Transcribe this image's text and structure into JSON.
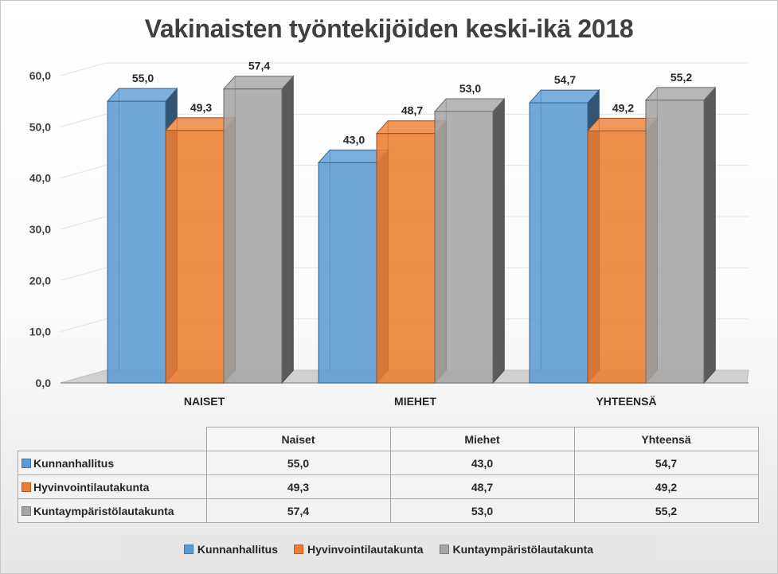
{
  "chart_data": {
    "type": "bar",
    "title": "Vakinaisten työntekijöiden keski-ikä 2018",
    "categories": [
      "NAISET",
      "MIEHET",
      "YHTEENSÄ"
    ],
    "ylim": [
      0,
      60
    ],
    "yticks": [
      "0,0",
      "10,0",
      "20,0",
      "30,0",
      "40,0",
      "50,0",
      "60,0"
    ],
    "grid": true,
    "legend_position": "bottom",
    "series": [
      {
        "name": "Kunnanhallitus",
        "color": "#5b9bd5",
        "values": [
          55.0,
          43.0,
          54.7
        ],
        "labels": [
          "55,0",
          "43,0",
          "54,7"
        ]
      },
      {
        "name": "Hyvinvointilautakunta",
        "color": "#ed7d31",
        "values": [
          49.3,
          48.7,
          49.2
        ],
        "labels": [
          "49,3",
          "48,7",
          "49,2"
        ]
      },
      {
        "name": "Kuntaympäristölautakunta",
        "color": "#a5a5a5",
        "values": [
          57.4,
          53.0,
          55.2
        ],
        "labels": [
          "57,4",
          "53,0",
          "55,2"
        ]
      }
    ]
  },
  "data_table": {
    "columns": [
      "Naiset",
      "Miehet",
      "Yhteensä"
    ],
    "rows": [
      {
        "name": "Kunnanhallitus",
        "values": [
          "55,0",
          "43,0",
          "54,7"
        ]
      },
      {
        "name": "Hyvinvointilautakunta",
        "values": [
          "49,3",
          "48,7",
          "49,2"
        ]
      },
      {
        "name": "Kuntaympäristölautakunta",
        "values": [
          "57,4",
          "53,0",
          "55,2"
        ]
      }
    ]
  }
}
